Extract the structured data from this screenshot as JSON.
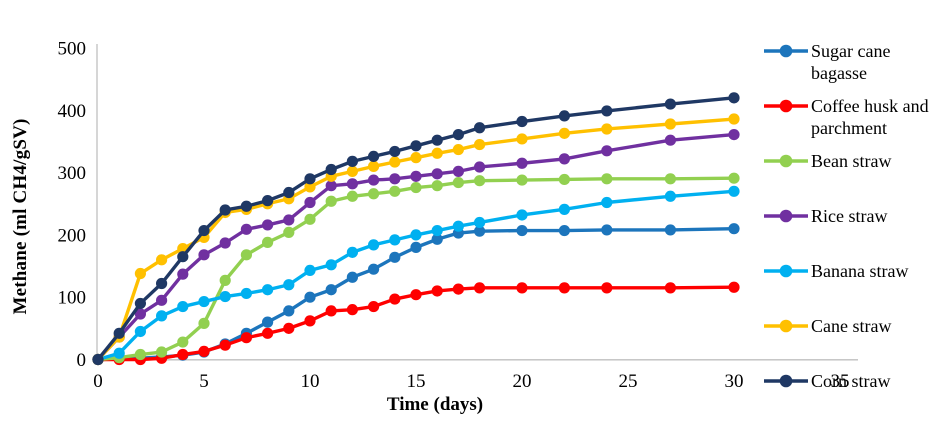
{
  "background": "#FFFFFF",
  "axis_color": "#BFBFBF",
  "text_color": "#000000",
  "chart_data": {
    "type": "line",
    "title": "",
    "xlabel": "Time (days)",
    "ylabel": "Methane (ml CH4/gSV)",
    "xlim": [
      0,
      35
    ],
    "ylim": [
      0,
      500
    ],
    "xticks": [
      0,
      5,
      10,
      15,
      20,
      25,
      30,
      35
    ],
    "yticks": [
      0,
      100,
      200,
      300,
      400,
      500
    ],
    "grid": false,
    "legend_position": "right",
    "marker": "circle",
    "x_days": [
      0,
      1,
      2,
      3,
      4,
      5,
      6,
      7,
      8,
      9,
      10,
      11,
      12,
      13,
      14,
      15,
      16,
      17,
      18,
      20,
      22,
      24,
      27,
      30
    ],
    "series": [
      {
        "name": "Sugar cane bagasse",
        "color": "#1C75BC",
        "values": [
          0,
          1,
          2,
          4,
          7,
          12,
          25,
          42,
          60,
          78,
          100,
          112,
          132,
          145,
          164,
          180,
          193,
          203,
          206,
          207,
          207,
          208,
          208,
          210
        ]
      },
      {
        "name": "Coffee husk and parchment",
        "color": "#FF0000",
        "values": [
          0,
          0,
          0,
          2,
          8,
          13,
          23,
          35,
          42,
          50,
          62,
          78,
          80,
          85,
          97,
          104,
          110,
          113,
          115,
          115,
          115,
          115,
          115,
          116
        ]
      },
      {
        "name": "Bean straw",
        "color": "#92D050",
        "values": [
          0,
          3,
          8,
          12,
          28,
          58,
          127,
          168,
          188,
          204,
          225,
          254,
          262,
          266,
          270,
          276,
          279,
          284,
          287,
          288,
          289,
          290,
          290,
          291
        ]
      },
      {
        "name": "Rice straw",
        "color": "#7030A0",
        "values": [
          0,
          36,
          73,
          95,
          137,
          168,
          187,
          209,
          216,
          224,
          252,
          279,
          282,
          288,
          290,
          294,
          298,
          302,
          309,
          315,
          322,
          335,
          352,
          361
        ]
      },
      {
        "name": "Banana straw",
        "color": "#00B0F0",
        "values": [
          0,
          10,
          45,
          70,
          85,
          93,
          101,
          106,
          112,
          120,
          143,
          152,
          172,
          184,
          192,
          200,
          207,
          214,
          220,
          232,
          241,
          252,
          262,
          270
        ]
      },
      {
        "name": "Cane straw",
        "color": "#FFC000",
        "values": [
          0,
          36,
          138,
          160,
          178,
          196,
          236,
          241,
          250,
          258,
          277,
          294,
          302,
          310,
          317,
          324,
          331,
          337,
          345,
          354,
          363,
          370,
          378,
          386
        ]
      },
      {
        "name": "Corn straw",
        "color": "#1F3864",
        "values": [
          0,
          42,
          90,
          122,
          165,
          207,
          240,
          246,
          255,
          268,
          290,
          305,
          318,
          326,
          334,
          343,
          352,
          361,
          372,
          382,
          391,
          399,
          410,
          420
        ]
      }
    ]
  }
}
